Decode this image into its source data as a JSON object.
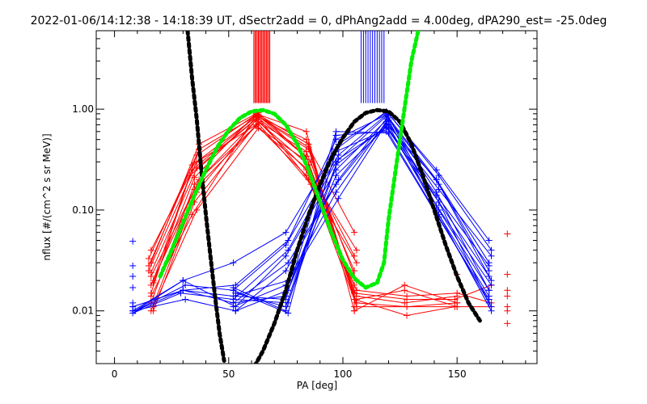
{
  "chart_data": {
    "type": "scatter",
    "title": "2022-01-06/14:12:38 - 14:18:39 UT, dSectr2add = 0, dPhAng2add = 4.00deg, dPA290_est= -25.0deg",
    "xlabel": "PA [deg]",
    "ylabel": "nflux [#/(cm^2 s sr MeV)]",
    "xlim": [
      -8,
      185
    ],
    "ylim": [
      0.003,
      6.0
    ],
    "yscale": "log",
    "grid": false,
    "x_ticks": [
      0,
      50,
      100,
      150
    ],
    "x_tick_labels": [
      "0",
      "50",
      "100",
      "150"
    ],
    "y_ticks": [
      0.01,
      0.1,
      1.0
    ],
    "y_tick_labels": [
      "0.01",
      "0.10",
      "1.00"
    ],
    "colors": {
      "red": "#ff0000",
      "blue": "#0000ff",
      "black": "#000000",
      "green": "#00ee00"
    },
    "red_lines": [
      {
        "x": [
          16,
          37,
          62,
          84,
          105
        ],
        "y": [
          0.03,
          0.45,
          0.9,
          0.6,
          0.01
        ]
      },
      {
        "x": [
          15,
          36,
          63,
          85,
          106
        ],
        "y": [
          0.025,
          0.3,
          0.88,
          0.45,
          0.011
        ]
      },
      {
        "x": [
          16,
          34,
          62,
          83,
          106
        ],
        "y": [
          0.04,
          0.25,
          0.85,
          0.35,
          0.012
        ]
      },
      {
        "x": [
          17,
          36,
          63,
          86,
          105
        ],
        "y": [
          0.02,
          0.35,
          0.92,
          0.3,
          0.015
        ]
      },
      {
        "x": [
          16,
          33,
          62,
          84,
          105
        ],
        "y": [
          0.015,
          0.22,
          0.8,
          0.25,
          0.013
        ]
      },
      {
        "x": [
          16,
          35,
          63,
          85,
          106
        ],
        "y": [
          0.012,
          0.18,
          0.82,
          0.2,
          0.016
        ]
      },
      {
        "x": [
          16,
          36,
          62,
          84,
          106
        ],
        "y": [
          0.01,
          0.15,
          0.78,
          0.38,
          0.02
        ]
      },
      {
        "x": [
          17,
          35,
          63,
          85,
          105
        ],
        "y": [
          0.01,
          0.12,
          0.75,
          0.28,
          0.025
        ]
      },
      {
        "x": [
          15,
          34,
          62,
          84,
          105
        ],
        "y": [
          0.033,
          0.28,
          0.7,
          0.22,
          0.018
        ]
      },
      {
        "x": [
          16,
          37,
          63,
          86,
          106
        ],
        "y": [
          0.018,
          0.2,
          0.72,
          0.18,
          0.03
        ]
      },
      {
        "x": [
          16,
          35,
          62,
          83,
          105
        ],
        "y": [
          0.022,
          0.16,
          0.68,
          0.32,
          0.035
        ]
      },
      {
        "x": [
          17,
          36,
          63,
          84,
          106
        ],
        "y": [
          0.011,
          0.1,
          0.65,
          0.26,
          0.04
        ]
      },
      {
        "x": [
          16,
          34,
          62,
          85,
          105
        ],
        "y": [
          0.014,
          0.09,
          0.88,
          0.42,
          0.06
        ]
      },
      {
        "x": [
          15,
          37,
          62,
          84,
          106,
          128,
          150
        ],
        "y": [
          0.028,
          0.4,
          0.86,
          0.5,
          0.012,
          0.011,
          0.012
        ]
      },
      {
        "x": [
          16,
          36,
          63,
          85,
          105,
          128,
          149
        ],
        "y": [
          0.024,
          0.26,
          0.84,
          0.4,
          0.013,
          0.009,
          0.011
        ]
      },
      {
        "x": [
          17,
          35,
          62,
          84,
          106,
          127,
          150
        ],
        "y": [
          0.019,
          0.21,
          0.9,
          0.34,
          0.014,
          0.012,
          0.014
        ]
      }
    ],
    "red_flat": [
      {
        "x": [
          105,
          128,
          150,
          165
        ],
        "y": [
          0.011,
          0.011,
          0.011,
          0.011
        ]
      },
      {
        "x": [
          106,
          127,
          150
        ],
        "y": [
          0.013,
          0.016,
          0.011
        ]
      },
      {
        "x": [
          105,
          128,
          149,
          165
        ],
        "y": [
          0.015,
          0.013,
          0.013,
          0.018
        ]
      },
      {
        "x": [
          106,
          128,
          150,
          165
        ],
        "y": [
          0.016,
          0.014,
          0.015,
          0.012
        ]
      },
      {
        "x": [
          105,
          127,
          150
        ],
        "y": [
          0.01,
          0.018,
          0.012
        ]
      }
    ],
    "red_markers": [
      {
        "x": 172,
        "y": 0.058
      },
      {
        "x": 172,
        "y": 0.023
      },
      {
        "x": 172,
        "y": 0.016
      },
      {
        "x": 172,
        "y": 0.014
      },
      {
        "x": 172,
        "y": 0.011
      },
      {
        "x": 172,
        "y": 0.01
      },
      {
        "x": 172,
        "y": 0.0075
      },
      {
        "x": 150,
        "y": 0.023
      },
      {
        "x": 165,
        "y": 0.018
      }
    ],
    "blue_lines": [
      {
        "x": [
          8,
          30,
          52,
          75,
          97,
          119,
          141,
          164
        ],
        "y": [
          0.01,
          0.02,
          0.03,
          0.06,
          0.4,
          0.95,
          0.25,
          0.05
        ]
      },
      {
        "x": [
          8,
          30,
          53,
          76,
          97,
          120,
          142,
          165
        ],
        "y": [
          0.011,
          0.016,
          0.018,
          0.05,
          0.5,
          0.9,
          0.22,
          0.04
        ]
      },
      {
        "x": [
          9,
          31,
          52,
          75,
          98,
          119,
          141,
          164
        ],
        "y": [
          0.01,
          0.018,
          0.016,
          0.045,
          0.35,
          0.88,
          0.2,
          0.03
        ]
      },
      {
        "x": [
          8,
          29,
          52,
          76,
          97,
          119,
          142,
          165
        ],
        "y": [
          0.0095,
          0.015,
          0.013,
          0.04,
          0.3,
          0.85,
          0.18,
          0.02
        ]
      },
      {
        "x": [
          9,
          30,
          53,
          75,
          97,
          120,
          141,
          164
        ],
        "y": [
          0.01,
          0.02,
          0.011,
          0.035,
          0.25,
          0.82,
          0.15,
          0.016
        ]
      },
      {
        "x": [
          8,
          30,
          52,
          76,
          98,
          119,
          142,
          164
        ],
        "y": [
          0.011,
          0.016,
          0.012,
          0.03,
          0.2,
          0.8,
          0.12,
          0.012
        ]
      },
      {
        "x": [
          8,
          31,
          53,
          75,
          97,
          120,
          141,
          165
        ],
        "y": [
          0.01,
          0.013,
          0.01,
          0.025,
          0.18,
          0.78,
          0.1,
          0.01
        ]
      },
      {
        "x": [
          9,
          30,
          52,
          76,
          97,
          119,
          142,
          164
        ],
        "y": [
          0.01,
          0.016,
          0.014,
          0.02,
          0.15,
          0.75,
          0.09,
          0.014
        ]
      },
      {
        "x": [
          52,
          75,
          98,
          119,
          141,
          164
        ],
        "y": [
          0.011,
          0.018,
          0.13,
          0.72,
          0.2,
          0.025
        ]
      },
      {
        "x": [
          53,
          76,
          97,
          120,
          142,
          165
        ],
        "y": [
          0.01,
          0.016,
          0.22,
          0.7,
          0.16,
          0.035
        ]
      },
      {
        "x": [
          52,
          75,
          97,
          119,
          141,
          164
        ],
        "y": [
          0.012,
          0.014,
          0.28,
          0.68,
          0.14,
          0.028
        ]
      },
      {
        "x": [
          52,
          76,
          98,
          119,
          142,
          164
        ],
        "y": [
          0.013,
          0.012,
          0.32,
          0.66,
          0.12,
          0.022
        ]
      },
      {
        "x": [
          53,
          75,
          97,
          120,
          141,
          165
        ],
        "y": [
          0.015,
          0.011,
          0.38,
          0.64,
          0.11,
          0.018
        ]
      },
      {
        "x": [
          52,
          75,
          98,
          119,
          142,
          164
        ],
        "y": [
          0.017,
          0.01,
          0.45,
          0.92,
          0.1,
          0.016
        ]
      },
      {
        "x": [
          52,
          76,
          97,
          119,
          141,
          164
        ],
        "y": [
          0.016,
          0.0095,
          0.55,
          0.6,
          0.09,
          0.013
        ]
      },
      {
        "x": [
          53,
          75,
          97,
          120,
          142,
          165
        ],
        "y": [
          0.014,
          0.013,
          0.6,
          0.58,
          0.085,
          0.011
        ]
      }
    ],
    "blue_markers": [
      {
        "x": 8,
        "y": 0.049
      },
      {
        "x": 8,
        "y": 0.028
      },
      {
        "x": 8,
        "y": 0.022
      },
      {
        "x": 8,
        "y": 0.017
      },
      {
        "x": 8,
        "y": 0.012
      }
    ],
    "red_vlines_x": [
      61,
      61.5,
      62,
      62.5,
      63,
      63.5,
      64,
      64.5,
      65,
      65.5,
      66,
      66.5,
      67,
      67.5,
      68
    ],
    "red_vlines_y": [
      1.15,
      6.0
    ],
    "blue_vlines_x": [
      108,
      109,
      110,
      111,
      112,
      113,
      114,
      115,
      116,
      117,
      118
    ],
    "blue_vlines_y": [
      1.15,
      6.0
    ],
    "black_curves": [
      {
        "name": "",
        "x": [
          32,
          34,
          36,
          38,
          40,
          42,
          44,
          46,
          48
        ],
        "y": [
          6.0,
          2.0,
          0.8,
          0.25,
          0.09,
          0.035,
          0.014,
          0.006,
          0.0032
        ]
      },
      {
        "name": "",
        "x": [
          60,
          65,
          70,
          75,
          80,
          85,
          90,
          95,
          100,
          105,
          110,
          115,
          120,
          125,
          130,
          135,
          140,
          145,
          150,
          155,
          160
        ],
        "y": [
          0.0025,
          0.004,
          0.0075,
          0.016,
          0.04,
          0.09,
          0.18,
          0.33,
          0.52,
          0.75,
          0.92,
          0.98,
          0.95,
          0.75,
          0.45,
          0.22,
          0.1,
          0.045,
          0.022,
          0.012,
          0.008
        ]
      }
    ],
    "green_curve": {
      "name": "",
      "x": [
        20,
        25,
        30,
        35,
        40,
        45,
        50,
        55,
        60,
        65,
        70,
        75,
        80,
        85,
        90,
        95,
        100,
        105,
        110,
        115,
        118,
        120,
        125,
        130,
        133
      ],
      "y": [
        0.022,
        0.04,
        0.075,
        0.14,
        0.25,
        0.42,
        0.62,
        0.82,
        0.95,
        0.98,
        0.9,
        0.7,
        0.45,
        0.25,
        0.12,
        0.06,
        0.032,
        0.021,
        0.017,
        0.019,
        0.03,
        0.08,
        0.5,
        3.0,
        6.0
      ]
    }
  }
}
